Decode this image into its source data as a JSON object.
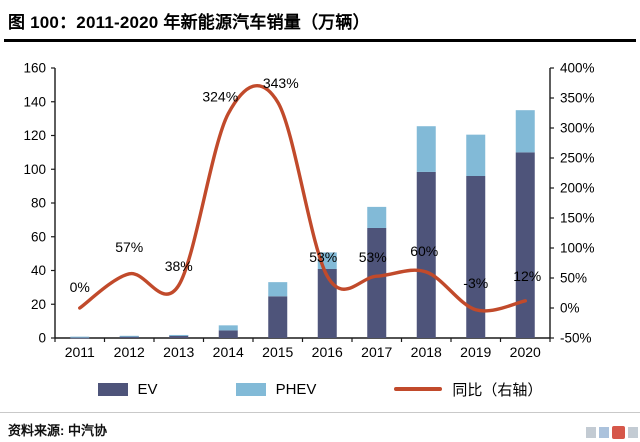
{
  "figure": {
    "title": "图 100：2011-2020 年新能源汽车销量（万辆）",
    "source": "资料来源: 中汽协"
  },
  "legend": {
    "ev_label": "EV",
    "phev_label": "PHEV",
    "line_label": "同比（右轴）"
  },
  "colors": {
    "ev": "#4E547A",
    "phev": "#82BAD7",
    "line": "#C14A2B",
    "axis": "#1a1a1a",
    "label": "#000000"
  },
  "chart_data": {
    "type": "combo",
    "categories": [
      "2011",
      "2012",
      "2013",
      "2014",
      "2015",
      "2016",
      "2017",
      "2018",
      "2019",
      "2020"
    ],
    "series": [
      {
        "name": "EV",
        "type": "bar",
        "stack": true,
        "axis": "left",
        "values": [
          0.6,
          1.1,
          1.5,
          4.5,
          24.7,
          40.9,
          65.2,
          98.4,
          96.0,
          110.0
        ]
      },
      {
        "name": "PHEV",
        "type": "bar",
        "stack": true,
        "axis": "left",
        "values": [
          0.2,
          0.2,
          0.3,
          3.0,
          8.4,
          9.8,
          12.5,
          27.1,
          24.5,
          25.0
        ]
      },
      {
        "name": "同比（右轴）",
        "type": "line",
        "axis": "right",
        "values": [
          0,
          57,
          38,
          324,
          343,
          53,
          53,
          60,
          -3,
          12
        ],
        "labels": [
          "0%",
          "57%",
          "38%",
          "324%",
          "343%",
          "53%",
          "53%",
          "60%",
          "-3%",
          "12%"
        ]
      }
    ],
    "left_axis": {
      "min": 0,
      "max": 160,
      "step": 20,
      "ticks": [
        "0",
        "20",
        "40",
        "60",
        "80",
        "100",
        "120",
        "140",
        "160"
      ]
    },
    "right_axis": {
      "min": -50,
      "max": 400,
      "step": 50,
      "ticks": [
        "-50%",
        "0%",
        "50%",
        "100%",
        "150%",
        "200%",
        "250%",
        "300%",
        "350%",
        "400%"
      ]
    },
    "grid": false,
    "legend_position": "bottom",
    "title": "图 100：2011-2020 年新能源汽车销量（万辆）"
  }
}
